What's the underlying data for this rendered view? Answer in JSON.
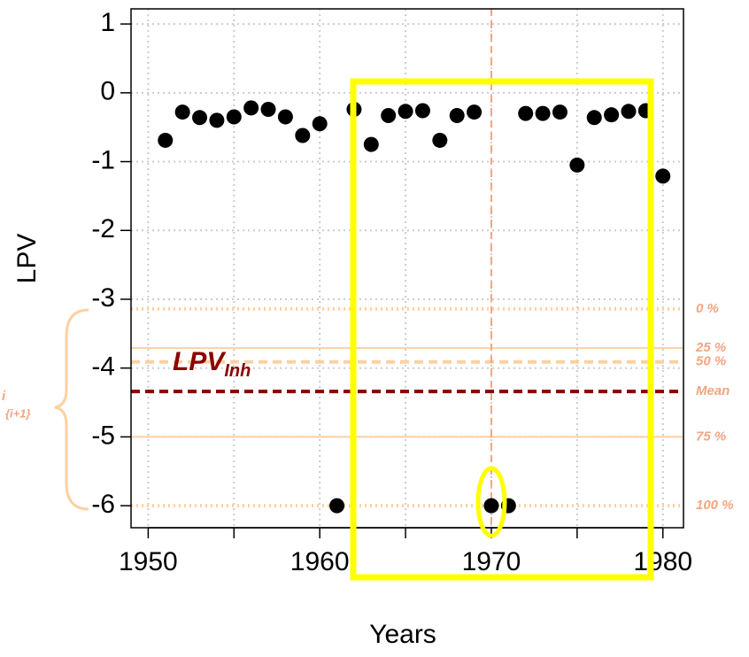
{
  "chart_data": {
    "type": "scatter",
    "x_label": "Years",
    "y_label": "LPV",
    "x": [
      1951,
      1952,
      1953,
      1954,
      1955,
      1956,
      1957,
      1958,
      1959,
      1960,
      1961,
      1962,
      1963,
      1964,
      1965,
      1966,
      1967,
      1968,
      1969,
      1970,
      1971,
      1972,
      1973,
      1974,
      1975,
      1976,
      1977,
      1978,
      1979,
      1980
    ],
    "values": [
      -0.69,
      -0.28,
      -0.36,
      -0.4,
      -0.35,
      -0.22,
      -0.24,
      -0.35,
      -0.62,
      -0.45,
      -6,
      -0.24,
      -0.75,
      -0.33,
      -0.27,
      -0.26,
      -0.69,
      -0.33,
      -0.28,
      -6,
      -6,
      -0.3,
      -0.3,
      -0.28,
      -1.05,
      -0.36,
      -0.32,
      -0.27,
      -0.26,
      -1.21
    ],
    "color": "#000000",
    "xlim": [
      1949,
      1981.2
    ],
    "ylim": [
      -6.32,
      1.22
    ],
    "xticks": [
      1950,
      1960,
      1970,
      1980
    ],
    "xminor": [
      1955,
      1965,
      1975
    ],
    "yticks": [
      1,
      0,
      -1,
      -2,
      -3,
      -4,
      -5,
      -6
    ],
    "grid": true,
    "vline_x": 1970,
    "reference_lines": [
      {
        "label": "0 %",
        "value": -3.14,
        "color": "#fdd0a2",
        "dash": "dotted"
      },
      {
        "label": "25 %",
        "value": -3.71,
        "color": "#fdd0a2",
        "dash": "solid"
      },
      {
        "label": "50 %",
        "value": -3.91,
        "color": "#fdd0a2",
        "dash": "dashed"
      },
      {
        "label": "Mean",
        "value": -4.34,
        "color": "#8b0000",
        "dash": "dashed"
      },
      {
        "label": "75 %",
        "value": -5.0,
        "color": "#fdd0a2",
        "dash": "solid"
      },
      {
        "label": "100 %",
        "value": -6.0,
        "color": "#fdd0a2",
        "dash": "dotted"
      }
    ],
    "inherent_label": {
      "text": "LPV",
      "subscript": "Inh"
    },
    "bracket_labels": [
      "i",
      "{i+1}"
    ]
  }
}
